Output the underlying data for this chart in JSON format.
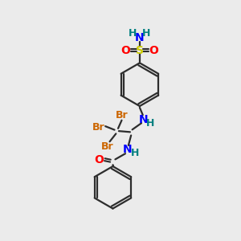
{
  "bg_color": "#ebebeb",
  "bond_color": "#2d2d2d",
  "atom_colors": {
    "N": "#0000ff",
    "O": "#ff0000",
    "S": "#cccc00",
    "Br": "#cc6600",
    "H": "#008080",
    "C": "#2d2d2d"
  },
  "figsize": [
    3.0,
    3.0
  ],
  "dpi": 100
}
